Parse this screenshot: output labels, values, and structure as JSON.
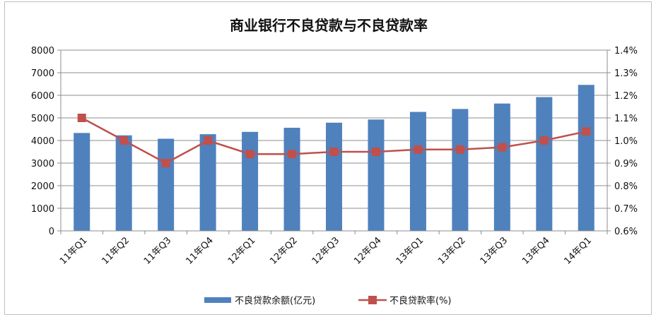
{
  "chart_data": {
    "type": "bar",
    "title": "商业银行不良贷款与不良贷款率",
    "categories": [
      "11年Q1",
      "11年Q2",
      "11年Q3",
      "11年Q4",
      "12年Q1",
      "12年Q2",
      "12年Q3",
      "12年Q4",
      "13年Q1",
      "13年Q2",
      "13年Q3",
      "13年Q4",
      "14年Q1"
    ],
    "series": [
      {
        "name": "不良贷款余额(亿元)",
        "type": "bar",
        "axis": "left",
        "color": "#4f81bd",
        "values": [
          4333,
          4229,
          4078,
          4279,
          4382,
          4564,
          4788,
          4929,
          5265,
          5395,
          5636,
          5921,
          6461
        ]
      },
      {
        "name": "不良贷款率(%)",
        "type": "line",
        "axis": "right",
        "color": "#c0504d",
        "values": [
          1.1,
          1.0,
          0.9,
          1.0,
          0.94,
          0.94,
          0.95,
          0.95,
          0.96,
          0.96,
          0.97,
          1.0,
          1.04
        ]
      }
    ],
    "y_left": {
      "min": 0,
      "max": 8000,
      "ticks": [
        "0",
        "1000",
        "2000",
        "3000",
        "4000",
        "5000",
        "6000",
        "7000",
        "8000"
      ]
    },
    "y_right": {
      "min": 0.6,
      "max": 1.4,
      "ticks": [
        "0.6%",
        "0.7%",
        "0.8%",
        "0.9%",
        "1.0%",
        "1.1%",
        "1.2%",
        "1.3%",
        "1.4%"
      ]
    },
    "grid": true,
    "legend": "bottom-center"
  }
}
